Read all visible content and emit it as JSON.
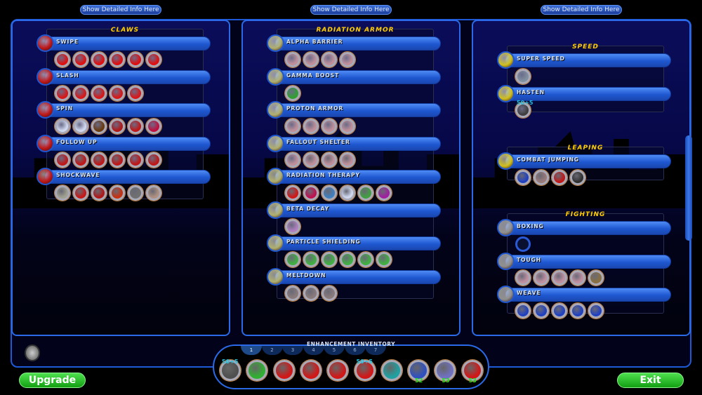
{
  "top_buttons": [
    "Show Detailed Info Here",
    "Show Detailed Info Here",
    "Show Detailed Info Here"
  ],
  "panels": [
    {
      "groups": [
        {
          "title": "CLAWS",
          "powers": [
            {
              "name": "SWIPE",
              "icon_color": "#c01818",
              "slots": [
                "#e01010",
                "#e01010",
                "#e01010",
                "#e01010",
                "#e01010",
                "#e01010"
              ]
            },
            {
              "name": "SLASH",
              "icon_color": "#c01818",
              "slots": [
                "#d81818",
                "#d81818",
                "#d81818",
                "#d81818",
                "#d81818"
              ]
            },
            {
              "name": "SPIN",
              "icon_color": "#c01818",
              "slots": [
                "#d0d8f0",
                "#d0d8f0",
                "#6a3a10",
                "#b01818",
                "#c01818",
                "#c01040"
              ]
            },
            {
              "name": "FOLLOW UP",
              "icon_color": "#c01818",
              "slots": [
                "#c01818",
                "#c01818",
                "#c01818",
                "#c01818",
                "#c01818",
                "#c01818"
              ]
            },
            {
              "name": "SHOCKWAVE",
              "icon_color": "#c01818",
              "slots": [
                "#a0a090",
                "#c81818",
                "#b01818",
                "#c83010",
                "#707070",
                "#b09080"
              ]
            }
          ]
        }
      ]
    },
    {
      "groups": [
        {
          "title": "RADIATION ARMOR",
          "powers": [
            {
              "name": "ALPHA BARRIER",
              "icon_color": "#b0b070",
              "slots": [
                "#c0909a",
                "#c0909a",
                "#c0909a",
                "#c0909a"
              ]
            },
            {
              "name": "GAMMA BOOST",
              "icon_color": "#b0b070",
              "slots": [
                "#30a030"
              ]
            },
            {
              "name": "PROTON ARMOR",
              "icon_color": "#b0b070",
              "slots": [
                "#c0909a",
                "#c0909a",
                "#c0909a",
                "#c0909a"
              ]
            },
            {
              "name": "FALLOUT SHELTER",
              "icon_color": "#b0b070",
              "slots": [
                "#c0909a",
                "#c0909a",
                "#c0909a",
                "#c0909a"
              ]
            },
            {
              "name": "RADIATION THERAPY",
              "icon_color": "#b0b070",
              "slots": [
                "#d01818",
                "#c01050",
                "#4080c0",
                "#d0d8f0",
                "#40a040",
                "#a020a0"
              ]
            },
            {
              "name": "BETA DECAY",
              "icon_color": "#b0b070",
              "slots": [
                "#b080c0"
              ]
            },
            {
              "name": "PARTICLE SHIELDING",
              "icon_color": "#b0b070",
              "slots": [
                "#40b040",
                "#40b040",
                "#40b040",
                "#40b040",
                "#40b040",
                "#40b040"
              ]
            },
            {
              "name": "MELTDOWN",
              "icon_color": "#b0b070",
              "slots": [
                "#8a7a7a",
                "#8a7a7a",
                "#8a7a7a"
              ]
            }
          ]
        }
      ]
    },
    {
      "groups": [
        {
          "title": "SPEED",
          "powers": [
            {
              "name": "SUPER SPEED",
              "icon_color": "#d0c020",
              "slots": [
                "#8090a0"
              ]
            },
            {
              "name": "HASTEN",
              "icon_color": "#d0c020",
              "slots": [
                "#404040"
              ],
              "slot_label": "50+5"
            }
          ]
        },
        {
          "title": "LEAPING",
          "powers": [
            {
              "name": "COMBAT JUMPING",
              "icon_color": "#d0c020",
              "slots": [
                "#2040c0",
                "#9a7a7a",
                "#c01818",
                "#303030"
              ]
            }
          ]
        },
        {
          "title": "FIGHTING",
          "powers": [
            {
              "name": "BOXING",
              "icon_color": "#909090",
              "slots": [
                "empty"
              ]
            },
            {
              "name": "TOUGH",
              "icon_color": "#909090",
              "slots": [
                "#c090a0",
                "#c090a0",
                "#c090a0",
                "#c090a0",
                "#8a7040"
              ]
            },
            {
              "name": "WEAVE",
              "icon_color": "#909090",
              "slots": [
                "#2040c0",
                "#2040c0",
                "#2040c0",
                "#2040c0",
                "#2040c0"
              ]
            }
          ]
        }
      ]
    }
  ],
  "inventory": {
    "title": "ENHANCEMENT INVENTORY",
    "tabs": [
      "1",
      "2",
      "3",
      "4",
      "5",
      "6",
      "7"
    ],
    "active_tab": "1",
    "items": [
      {
        "color": "#505050",
        "top": "50+5"
      },
      {
        "color": "#30b030"
      },
      {
        "color": "#d01818"
      },
      {
        "color": "#d01818"
      },
      {
        "color": "#d01818"
      },
      {
        "color": "#d01818",
        "top": "50+5"
      },
      {
        "color": "#20a0a0"
      },
      {
        "color": "#3050c0",
        "bottom": "52"
      },
      {
        "color": "#7070c0",
        "bottom": "53"
      },
      {
        "color": "#d01818",
        "bottom": "53"
      }
    ]
  },
  "buttons": {
    "upgrade": "Upgrade",
    "exit": "Exit"
  },
  "colors": {
    "accent": "#2a6ae8",
    "title": "#ffcc00",
    "button_green": "#22b022"
  }
}
